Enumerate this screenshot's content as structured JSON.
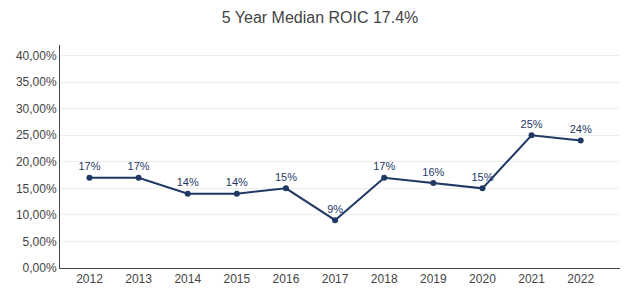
{
  "chart_data": {
    "type": "line",
    "title": "5 Year Median ROIC 17.4%",
    "x": [
      2012,
      2013,
      2014,
      2015,
      2016,
      2017,
      2018,
      2019,
      2020,
      2021,
      2022
    ],
    "values": [
      0.17,
      0.17,
      0.14,
      0.14,
      0.15,
      0.09,
      0.17,
      0.16,
      0.15,
      0.25,
      0.24
    ],
    "value_labels": [
      "17%",
      "17%",
      "14%",
      "14%",
      "15%",
      "9%",
      "17%",
      "16%",
      "15%",
      "25%",
      "24%"
    ],
    "data_labels": true,
    "color": "#1F3864",
    "marker": "circle",
    "xlim": [
      2011.4,
      2022.8
    ],
    "xticks": [
      2012,
      2013,
      2014,
      2015,
      2016,
      2017,
      2018,
      2019,
      2020,
      2021,
      2022
    ],
    "ylim": [
      0.0,
      0.42
    ],
    "yticks": [
      {
        "value": 0.0,
        "label": "0,00%"
      },
      {
        "value": 0.05,
        "label": "5,00%"
      },
      {
        "value": 0.1,
        "label": "10,00%"
      },
      {
        "value": 0.15,
        "label": "15,00%"
      },
      {
        "value": 0.2,
        "label": "20,00%"
      },
      {
        "value": 0.25,
        "label": "25,00%"
      },
      {
        "value": 0.3,
        "label": "30,00%"
      },
      {
        "value": 0.35,
        "label": "35,00%"
      },
      {
        "value": 0.4,
        "label": "40,00%"
      }
    ],
    "grid": true
  }
}
